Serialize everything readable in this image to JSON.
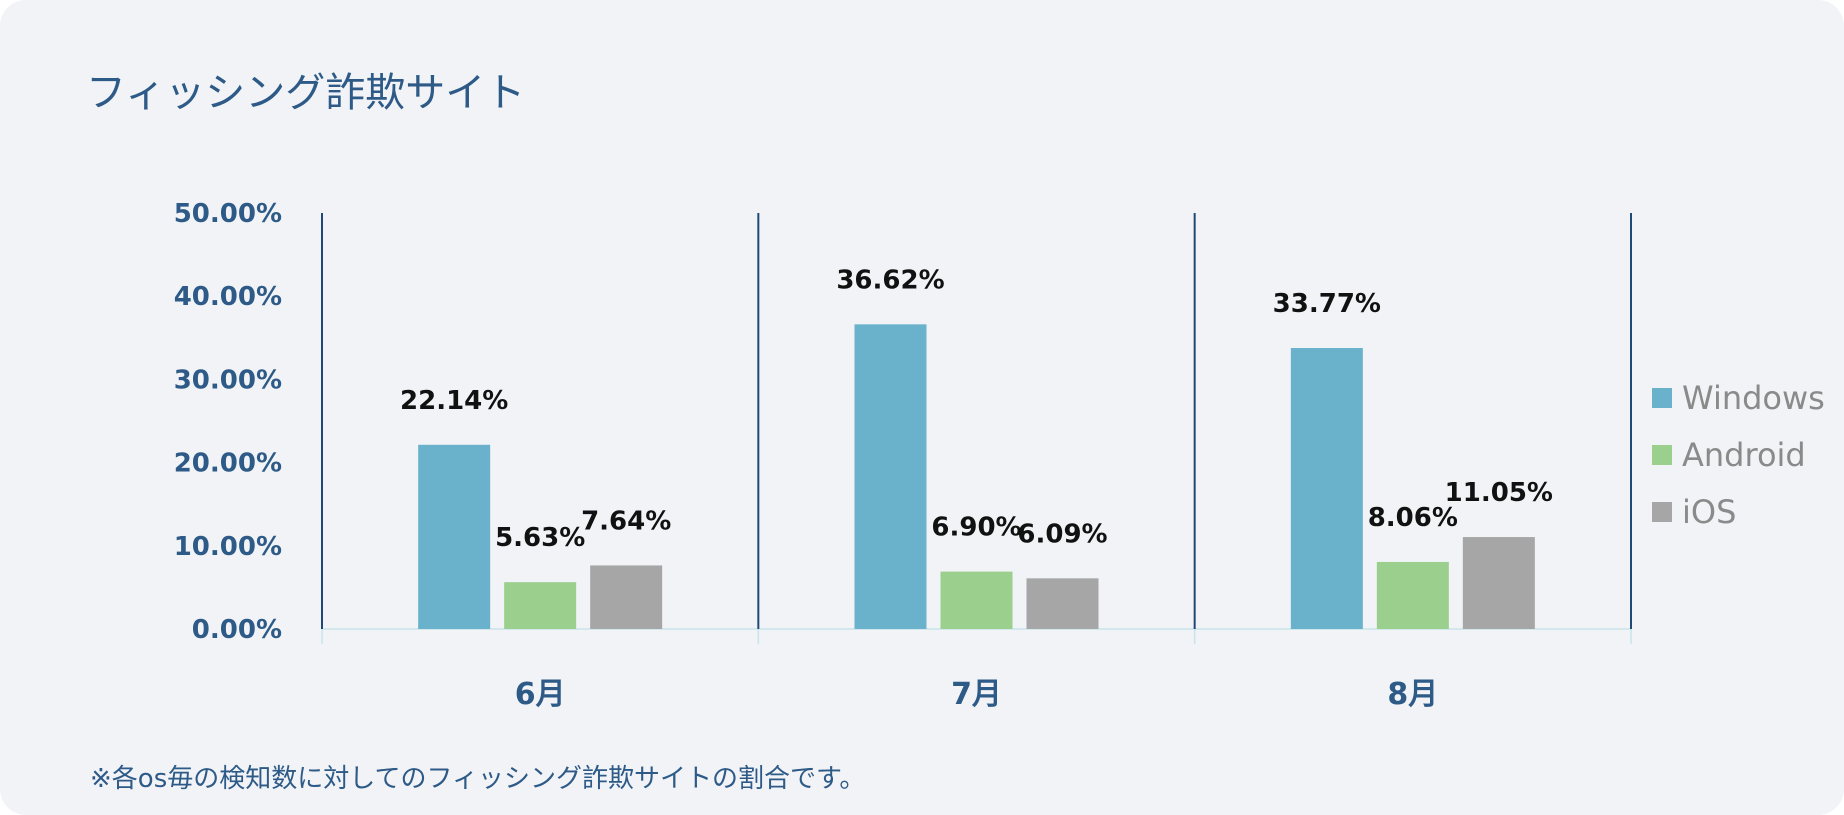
{
  "title": "フィッシング詐欺サイト",
  "footnote": "※各os毎の検知数に対してのフィッシング詐欺サイトの割合です。",
  "chart_data": {
    "type": "bar",
    "title": "フィッシング詐欺サイト",
    "categories": [
      "6月",
      "7月",
      "8月"
    ],
    "series": [
      {
        "name": "Windows",
        "color": "#6ab1cb",
        "values": [
          22.14,
          36.62,
          33.77
        ],
        "labels": [
          "22.14%",
          "36.62%",
          "33.77%"
        ]
      },
      {
        "name": "Android",
        "color": "#9bcf8e",
        "values": [
          5.63,
          6.9,
          8.06
        ],
        "labels": [
          "5.63%",
          "6.90%",
          "8.06%"
        ]
      },
      {
        "name": "iOS",
        "color": "#a6a6a6",
        "values": [
          7.64,
          6.09,
          11.05
        ],
        "labels": [
          "7.64%",
          "6.09%",
          "11.05%"
        ]
      }
    ],
    "ylim": [
      0,
      50
    ],
    "yticks": [
      0,
      10,
      20,
      30,
      40,
      50
    ],
    "ytick_labels": [
      "0.00%",
      "10.00%",
      "20.00%",
      "30.00%",
      "40.00%",
      "50.00%"
    ],
    "legend_position": "right",
    "grid": false
  }
}
